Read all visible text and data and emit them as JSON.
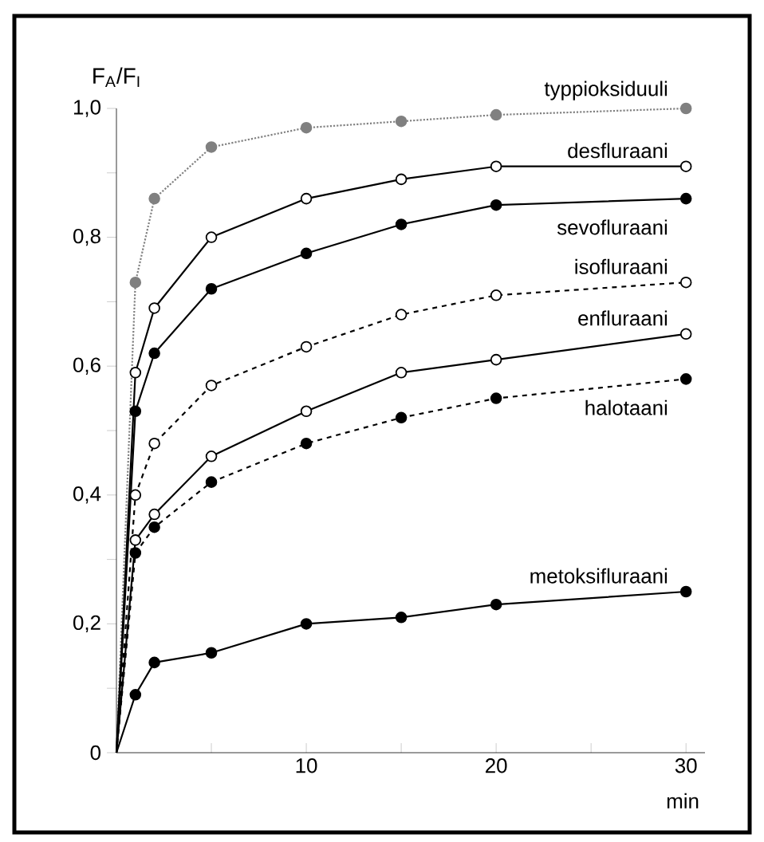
{
  "chart_data": {
    "type": "line",
    "xlabel": "min",
    "ylabel": "F$_{A}$/F$_{I}$",
    "x": [
      0,
      1,
      2,
      5,
      10,
      15,
      20,
      30
    ],
    "xlim": [
      0,
      31
    ],
    "ylim": [
      0,
      1.0
    ],
    "xticks": [
      {
        "value": 5,
        "label": null
      },
      10,
      {
        "value": 15,
        "label": null
      },
      20,
      {
        "value": 25,
        "label": null
      },
      30
    ],
    "yticks": [
      0,
      {
        "value": 0.1,
        "label": null
      },
      {
        "value": 0.2,
        "label": "0,2"
      },
      {
        "value": 0.3,
        "label": null
      },
      {
        "value": 0.4,
        "label": "0,4"
      },
      {
        "value": 0.5,
        "label": null
      },
      {
        "value": 0.6,
        "label": "0,6"
      },
      {
        "value": 0.7,
        "label": null
      },
      {
        "value": 0.8,
        "label": "0,8"
      },
      {
        "value": 0.9,
        "label": null
      },
      {
        "value": 1.0,
        "label": "1,0"
      }
    ],
    "grid": false,
    "legend": false,
    "marker": "circle",
    "series": [
      {
        "name": "typpioksiduuli",
        "color": "#808080",
        "line_style": "dotted",
        "values": [
          0,
          0.73,
          0.86,
          0.94,
          0.97,
          0.98,
          0.99,
          1.0
        ]
      },
      {
        "name": "desfluraani",
        "color": "#000000",
        "line_style": "solid",
        "values": [
          0,
          0.59,
          0.69,
          0.8,
          0.86,
          0.89,
          0.91,
          0.91
        ]
      },
      {
        "name": "sevofluraani",
        "color": "#000000",
        "line_style": "solid",
        "values": [
          0,
          0.53,
          0.62,
          0.72,
          0.775,
          0.82,
          0.85,
          0.86
        ]
      },
      {
        "name": "isofluraani",
        "color": "#000000",
        "line_style": "dashed",
        "values": [
          0,
          0.4,
          0.48,
          0.57,
          0.63,
          0.68,
          0.71,
          0.73
        ]
      },
      {
        "name": "enfluraani",
        "color": "#000000",
        "line_style": "solid",
        "values": [
          0,
          0.33,
          0.37,
          0.46,
          0.53,
          0.59,
          0.61,
          0.65
        ]
      },
      {
        "name": "halotaani",
        "color": "#000000",
        "line_style": "dashed",
        "values": [
          0,
          0.31,
          0.35,
          0.42,
          0.48,
          0.52,
          0.55,
          0.58
        ]
      },
      {
        "name": "metoksifluraani",
        "color": "#000000",
        "line_style": "solid",
        "values": [
          0,
          0.09,
          0.14,
          0.155,
          0.2,
          0.21,
          0.23,
          0.25
        ]
      }
    ]
  }
}
